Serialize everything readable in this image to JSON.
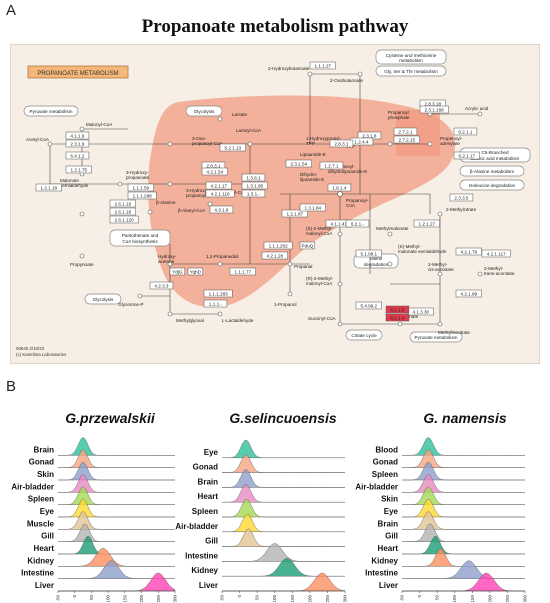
{
  "panel_a": {
    "letter": "A",
    "title": "Propanoate metabolism pathway",
    "map_label": "PROPANOATE METABOLISM",
    "footer_code": "00640 2/10/23",
    "footer_copyright": "(c) Kanehisa Laboratories",
    "compounds": [
      "2-Hydroxybutanoate",
      "2-Oxobutanoate",
      "Acetyl-CoA",
      "Malonyl-CoA",
      "Malonate semialdehyde",
      "Propenoate",
      "3-Hydroxy-propanoate",
      "3-Oxo-propanoyl-CoA",
      "3-Hydroxy-propanoyl-CoA",
      "Acryloyl-CoA",
      "β-Alanyl-CoA",
      "β-Alanine",
      "Lactate",
      "Lactoyl-CoA",
      "Propanoate",
      "Propanoyl phosphate",
      "Acrylic acid",
      "Propenoyl-adenylate",
      "Propanoyl-CoA",
      "2-Methylcitrate",
      "2-Methyl-cis-aconitate",
      "2-Methyl-trans-aconitate",
      "Methylisocitrate",
      "Succinate",
      "Succinyl-CoA",
      "(S)-2-Methyl-malonyl-CoA",
      "(R)-2-Methyl-malonyl-CoA",
      "Methylmalonate",
      "(S)-Methyl-malonate semialdehyde",
      "Propanal",
      "1-Propanol",
      "Hydroxy-acetone",
      "1,2-Propanediol",
      "Methylglyoxal",
      "L-Lactaldehyde",
      "Glycerone-P",
      "Lipoamide-E",
      "TPP",
      "1-Hydroxypropyl-TPP",
      "Dihydro-lipoamide-E",
      "S-Propanoyl-dihydrolipoamide-E"
    ],
    "pathway_links": [
      "Cysteine and methionine metabolism",
      "Gly, Ser & Thr metabolism",
      "Pyruvate metabolism",
      "Glycolysis",
      "Pantothenate and CoA biosynthesis",
      "C5-Branched dibasic acid metabolism",
      "β-Alanine metabolism",
      "Isoleucine degradation",
      "Valine degradation",
      "Citrate cycle"
    ],
    "enzymes": [
      "1.1.1.27",
      "4.1.1.9",
      "2.3.1.9",
      "6.4.1.2",
      "1.2.1.75",
      "1.2.1.18",
      "1.1.1.59",
      "1.1.1.298",
      "4.2.1.17",
      "4.2.1.116",
      "2.8.3.1",
      "4.2.1.54",
      "1.3.8.1",
      "1.3.1.95",
      "1.3.1.-",
      "6.2.1.13",
      "2.6.1.19",
      "2.6.1.18",
      "2.6.1.120",
      "4.3.1.6",
      "2.3.3.5",
      "4.2.1.79",
      "4.2.1.99",
      "4.1.3.30",
      "6.2.1.5",
      "6.2.1.4",
      "5.4.99.2",
      "5.1.99.1",
      "4.1.1.41",
      "1.2.1.27",
      "4.2.1.117",
      "2.7.2.1",
      "2.7.2.15",
      "2.3.1.8",
      "1.2.1.87",
      "1.1.1.202",
      "4.2.1.28",
      "1.1.1.77",
      "4.2.3.3",
      "1.1.1.283",
      "1.1.1.-",
      "YdjG",
      "YqhD",
      "PduQ",
      "2.8.3.18",
      "2.3.1.168",
      "6.2.1.1",
      "6.2.1.17",
      "1.3.1.84",
      "2.3.1.54",
      "1.2.7.1",
      "1.2.4.4",
      "1.8.1.4",
      "2.8.3.1",
      "6.2.1.-"
    ]
  },
  "panel_b": {
    "letter": "B",
    "x_ticks": [
      "-50",
      "0",
      "50",
      "100",
      "150",
      "200",
      "250",
      "300"
    ],
    "charts": [
      {
        "title": "G.przewalskii",
        "categories": [
          "Brain",
          "Gonad",
          "Skin",
          "Air-bladder",
          "Spleen",
          "Eye",
          "Muscle",
          "Gill",
          "Heart",
          "Kidney",
          "Intestine",
          "Liver"
        ],
        "peaks": [
          25,
          25,
          25,
          25,
          25,
          25,
          25,
          30,
          40,
          85,
          110,
          250
        ],
        "colors": [
          "#2fbf9b",
          "#f4a582",
          "#8c9fcb",
          "#e78ac3",
          "#a6d854",
          "#ffd92f",
          "#e5c494",
          "#b3b3b3",
          "#1b9e77",
          "#fc8d62",
          "#8da0cb",
          "#ff44b4"
        ]
      },
      {
        "title": "G.selincuoensis",
        "categories": [
          "Eye",
          "Gonad",
          "Brain",
          "Heart",
          "Spleen",
          "Air-bladder",
          "Gill",
          "Intestine",
          "Kidney",
          "Liver"
        ],
        "peaks": [
          18,
          18,
          18,
          18,
          20,
          22,
          25,
          100,
          135,
          235
        ],
        "colors": [
          "#2fbf9b",
          "#f4a582",
          "#8c9fcb",
          "#e78ac3",
          "#a6d854",
          "#ffd92f",
          "#e5c494",
          "#b3b3b3",
          "#1b9e77",
          "#fc8d62"
        ]
      },
      {
        "title": "G. namensis",
        "categories": [
          "Blood",
          "Gonad",
          "Spleen",
          "Air-bladder",
          "Skin",
          "Eye",
          "Brain",
          "Gill",
          "Heart",
          "Kidney",
          "Intestine",
          "Liver"
        ],
        "peaks": [
          25,
          25,
          25,
          25,
          25,
          25,
          25,
          30,
          45,
          60,
          140,
          190
        ],
        "colors": [
          "#2fbf9b",
          "#f4a582",
          "#8c9fcb",
          "#e78ac3",
          "#a6d854",
          "#ffd92f",
          "#e5c494",
          "#b3b3b3",
          "#1b9e77",
          "#fc8d62",
          "#8da0cb",
          "#ff44b4"
        ]
      }
    ]
  }
}
